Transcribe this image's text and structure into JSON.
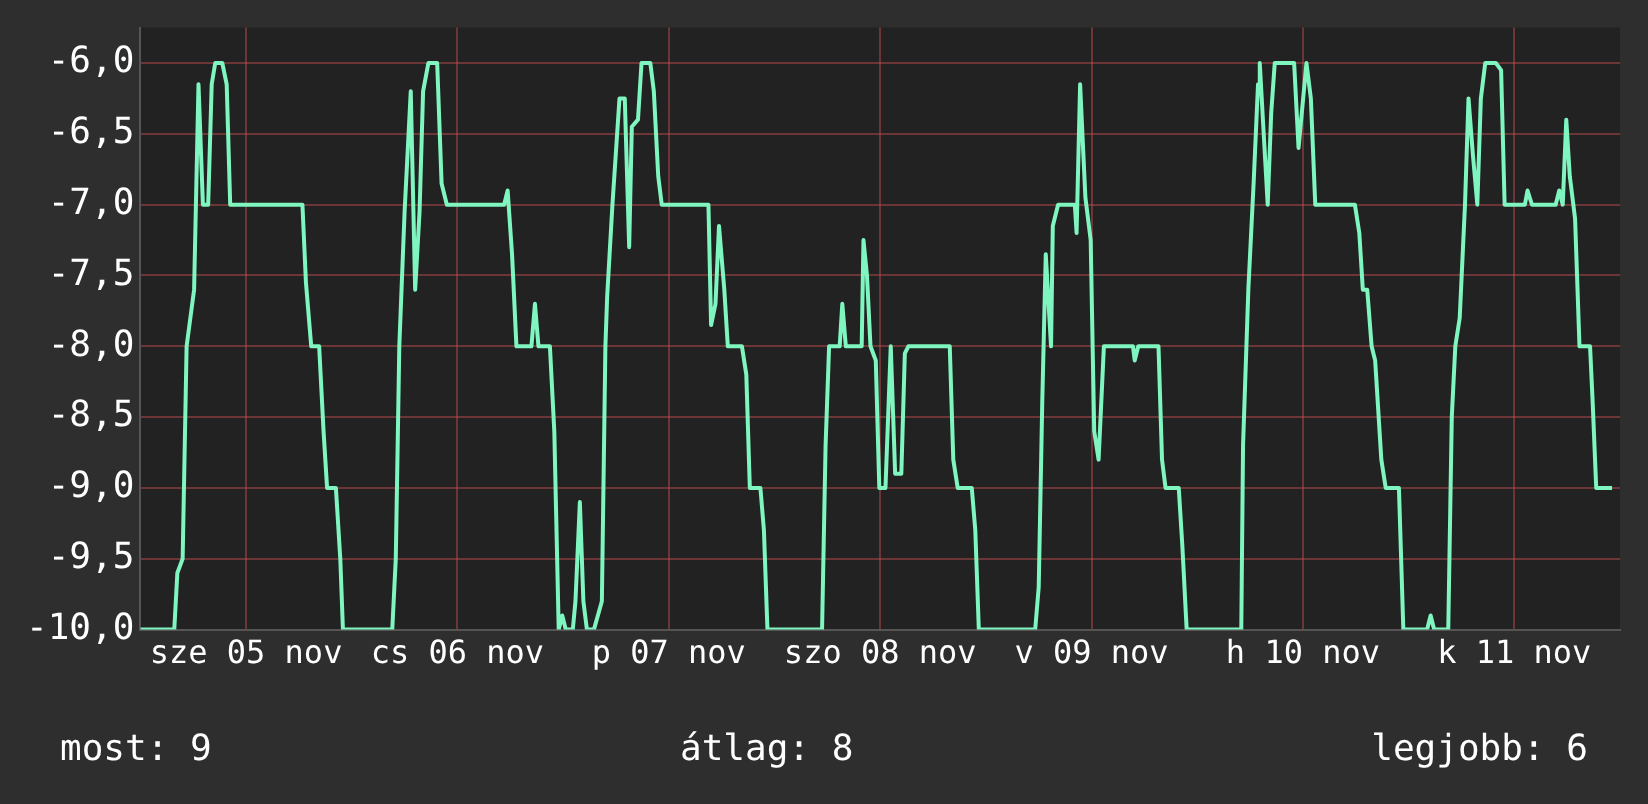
{
  "chart_data": {
    "type": "line",
    "x": [
      "--11-05T00:00",
      "--11-05T03:51",
      "--11-05T04:12",
      "--11-05T04:48",
      "--11-05T05:15",
      "--11-05T06:06",
      "--11-05T06:36",
      "--11-05T07:06",
      "--11-05T07:42",
      "--11-05T08:06",
      "--11-05T08:30",
      "--11-05T09:18",
      "--11-05T09:48",
      "--11-05T10:12",
      "--11-05T18:24",
      "--11-05T18:48",
      "--11-05T19:24",
      "--11-05T20:18",
      "--11-05T20:48",
      "--11-05T21:12",
      "--11-05T22:12",
      "--11-05T22:42",
      "--11-05T23:00",
      "--11-06T04:36",
      "--11-06T05:00",
      "--11-06T05:24",
      "--11-06T06:00",
      "--11-06T06:42",
      "--11-06T07:12",
      "--11-06T07:42",
      "--11-06T08:06",
      "--11-06T08:42",
      "--11-06T09:42",
      "--11-06T10:12",
      "--11-06T10:48",
      "--11-06T17:18",
      "--11-06T17:42",
      "--11-06T18:12",
      "--11-06T18:42",
      "--11-06T20:24",
      "--11-06T20:48",
      "--11-06T21:12",
      "--11-06T22:30",
      "--11-06T23:00",
      "--11-06T23:30",
      "--11-06T23:54",
      "--11-07T00:18",
      "--11-07T01:06",
      "--11-07T01:24",
      "--11-07T01:54",
      "--11-07T02:18",
      "--11-07T02:42",
      "--11-07T03:30",
      "--11-07T04:24",
      "--11-07T04:48",
      "--11-07T05:00",
      "--11-07T05:36",
      "--11-07T06:24",
      "--11-07T07:00",
      "--11-07T07:30",
      "--11-07T07:48",
      "--11-07T08:30",
      "--11-07T08:54",
      "--11-07T09:54",
      "--11-07T10:18",
      "--11-07T10:48",
      "--11-07T11:12",
      "--11-07T16:30",
      "--11-07T16:48",
      "--11-07T17:18",
      "--11-07T17:42",
      "--11-07T18:18",
      "--11-07T18:42",
      "--11-07T20:18",
      "--11-07T20:48",
      "--11-07T21:12",
      "--11-07T22:24",
      "--11-07T22:48",
      "--11-07T23:12",
      "--11-08T05:24",
      "--11-08T05:48",
      "--11-08T06:12",
      "--11-08T07:24",
      "--11-08T07:42",
      "--11-08T08:06",
      "--11-08T09:54",
      "--11-08T10:06",
      "--11-08T10:30",
      "--11-08T10:54",
      "--11-08T11:30",
      "--11-08T11:54",
      "--11-08T12:36",
      "--11-08T13:12",
      "--11-08T13:42",
      "--11-08T14:24",
      "--11-08T14:48",
      "--11-08T15:12",
      "--11-08T19:54",
      "--11-08T20:18",
      "--11-08T20:48",
      "--11-08T22:24",
      "--11-08T22:48",
      "--11-08T23:12",
      "--11-09T05:36",
      "--11-09T06:00",
      "--11-09T06:24",
      "--11-09T06:48",
      "--11-09T07:24",
      "--11-09T07:36",
      "--11-09T08:12",
      "--11-09T10:06",
      "--11-09T10:18",
      "--11-09T10:42",
      "--11-09T11:18",
      "--11-09T11:54",
      "--11-09T12:18",
      "--11-09T12:48",
      "--11-09T13:24",
      "--11-09T16:42",
      "--11-09T16:54",
      "--11-09T17:18",
      "--11-09T19:36",
      "--11-09T20:00",
      "--11-09T20:24",
      "--11-09T21:54",
      "--11-09T22:18",
      "--11-09T22:48",
      "--11-10T05:00",
      "--11-10T05:12",
      "--11-10T05:48",
      "--11-10T06:24",
      "--11-10T06:54",
      "--11-10T07:06",
      "--11-10T07:30",
      "--11-10T08:00",
      "--11-10T08:24",
      "--11-10T08:48",
      "--11-10T11:00",
      "--11-10T11:30",
      "--11-10T12:24",
      "--11-10T12:54",
      "--11-10T13:24",
      "--11-10T17:54",
      "--11-10T18:24",
      "--11-10T18:48",
      "--11-10T19:18",
      "--11-10T19:48",
      "--11-10T20:12",
      "--11-10T20:54",
      "--11-10T21:24",
      "--11-10T22:54",
      "--11-10T23:24",
      "--11-11T02:06",
      "--11-11T02:30",
      "--11-11T02:54",
      "--11-11T04:30",
      "--11-11T04:54",
      "--11-11T05:18",
      "--11-11T05:48",
      "--11-11T06:24",
      "--11-11T06:48",
      "--11-11T07:18",
      "--11-11T07:48",
      "--11-11T08:12",
      "--11-11T08:42",
      "--11-11T09:54",
      "--11-11T10:30",
      "--11-11T10:54",
      "--11-11T13:12",
      "--11-11T13:30",
      "--11-11T14:00",
      "--11-11T16:42",
      "--11-11T17:06",
      "--11-11T17:30",
      "--11-11T17:54",
      "--11-11T18:18",
      "--11-11T18:54",
      "--11-11T19:24",
      "--11-11T20:36",
      "--11-11T20:54",
      "--11-11T21:18",
      "--11-11T23:06"
    ],
    "series": [
      {
        "color": "#7ff5c0",
        "values": [
          -10.0,
          -10.0,
          -9.6,
          -9.5,
          -8.0,
          -7.6,
          -6.15,
          -7.0,
          -7.0,
          -6.15,
          -6.0,
          -6.0,
          -6.15,
          -7.0,
          -7.0,
          -7.55,
          -8.0,
          -8.0,
          -8.6,
          -9.0,
          -9.0,
          -9.5,
          -10.0,
          -10.0,
          -9.5,
          -8.0,
          -7.05,
          -6.2,
          -7.6,
          -7.05,
          -6.2,
          -6.0,
          -6.0,
          -6.85,
          -7.0,
          -7.0,
          -6.9,
          -7.35,
          -8.0,
          -8.0,
          -7.7,
          -8.0,
          -8.0,
          -8.6,
          -10.0,
          -9.9,
          -10.0,
          -10.0,
          -9.8,
          -9.1,
          -9.8,
          -10.0,
          -10.0,
          -9.8,
          -8.0,
          -7.65,
          -7.0,
          -6.25,
          -6.25,
          -7.3,
          -6.45,
          -6.4,
          -6.0,
          -6.0,
          -6.2,
          -6.8,
          -7.0,
          -7.0,
          -7.85,
          -7.7,
          -7.15,
          -7.6,
          -8.0,
          -8.0,
          -8.2,
          -9.0,
          -9.0,
          -9.3,
          -10.0,
          -10.0,
          -8.7,
          -8.0,
          -8.0,
          -7.7,
          -8.0,
          -8.0,
          -7.25,
          -7.5,
          -8.0,
          -8.1,
          -9.0,
          -9.0,
          -8.0,
          -8.9,
          -8.9,
          -8.05,
          -8.0,
          -8.0,
          -8.8,
          -9.0,
          -9.0,
          -9.3,
          -10.0,
          -10.0,
          -9.7,
          -8.4,
          -7.35,
          -8.0,
          -7.15,
          -7.0,
          -7.0,
          -7.2,
          -6.15,
          -6.95,
          -7.25,
          -8.6,
          -8.8,
          -8.0,
          -8.0,
          -8.1,
          -8.0,
          -8.0,
          -8.8,
          -9.0,
          -9.0,
          -9.4,
          -10.0,
          -10.0,
          -8.7,
          -7.6,
          -6.85,
          -6.15,
          -6.0,
          -6.45,
          -7.0,
          -6.35,
          -6.0,
          -6.0,
          -6.6,
          -6.0,
          -6.25,
          -7.0,
          -7.0,
          -7.2,
          -7.6,
          -7.6,
          -8.0,
          -8.1,
          -8.8,
          -9.0,
          -9.0,
          -10.0,
          -10.0,
          -9.9,
          -10.0,
          -10.0,
          -8.5,
          -8.0,
          -7.8,
          -7.0,
          -6.25,
          -6.65,
          -7.0,
          -6.25,
          -6.0,
          -6.0,
          -6.05,
          -7.0,
          -7.0,
          -6.9,
          -7.0,
          -7.0,
          -6.9,
          -7.0,
          -6.4,
          -6.8,
          -7.1,
          -8.0,
          -8.0,
          -8.4,
          -9.0,
          -9.0
        ]
      }
    ],
    "xlim": [
      "--11-05T00:00",
      "--11-12T00:00"
    ],
    "xticks": [
      {
        "value": "--11-05T12:00",
        "label": "sze 05 nov"
      },
      {
        "value": "--11-06T12:00",
        "label": "cs 06 nov"
      },
      {
        "value": "--11-07T12:00",
        "label": "p 07 nov"
      },
      {
        "value": "--11-08T12:00",
        "label": "szo 08 nov"
      },
      {
        "value": "--11-09T12:00",
        "label": "v 09 nov"
      },
      {
        "value": "--11-10T12:00",
        "label": "h 10 nov"
      },
      {
        "value": "--11-11T12:00",
        "label": "k 11 nov"
      }
    ],
    "ylim": [
      -10,
      -5.75
    ],
    "yticks": [
      {
        "value": -10,
        "label": "-10,0"
      },
      {
        "value": -9.5,
        "label": "-9,5"
      },
      {
        "value": -9,
        "label": "-9,0"
      },
      {
        "value": -8.5,
        "label": "-8,5"
      },
      {
        "value": -8,
        "label": "-8,0"
      },
      {
        "value": -7.5,
        "label": "-7,5"
      },
      {
        "value": -7,
        "label": "-7,0"
      },
      {
        "value": -6.5,
        "label": "-6,5"
      },
      {
        "value": -6,
        "label": "-6,0"
      }
    ],
    "grid": true,
    "legend": false,
    "marker": "none",
    "line_style": "solid",
    "annotations": [
      "most: 9",
      "átlag: 8",
      "legjobb: 6"
    ]
  }
}
